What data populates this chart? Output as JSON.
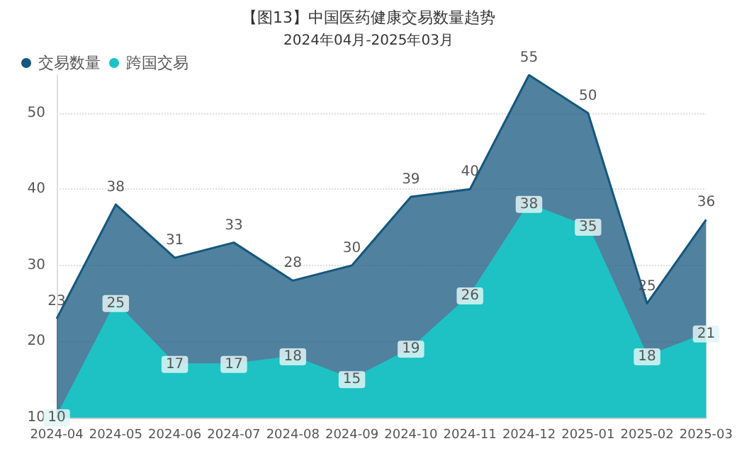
{
  "chart_data": {
    "type": "area",
    "title": "【图13】中国医药健康交易数量趋势",
    "subtitle": "2024年04月-2025年03月",
    "categories": [
      "2024-04",
      "2024-05",
      "2024-06",
      "2024-07",
      "2024-08",
      "2024-09",
      "2024-10",
      "2024-11",
      "2024-12",
      "2025-01",
      "2025-02",
      "2025-03"
    ],
    "series": [
      {
        "name": "交易数量",
        "color": "#15577e",
        "values": [
          23,
          38,
          31,
          33,
          28,
          30,
          39,
          40,
          55,
          50,
          25,
          36
        ]
      },
      {
        "name": "跨国交易",
        "color": "#1ec2c4",
        "values": [
          10,
          25,
          17,
          17,
          18,
          15,
          19,
          26,
          38,
          35,
          18,
          21
        ]
      }
    ],
    "ylim": [
      10,
      55
    ],
    "yticks": [
      10,
      20,
      30,
      40,
      50
    ],
    "grid": "y",
    "legend": "top left",
    "line_style": "solid",
    "data_labels": true
  }
}
